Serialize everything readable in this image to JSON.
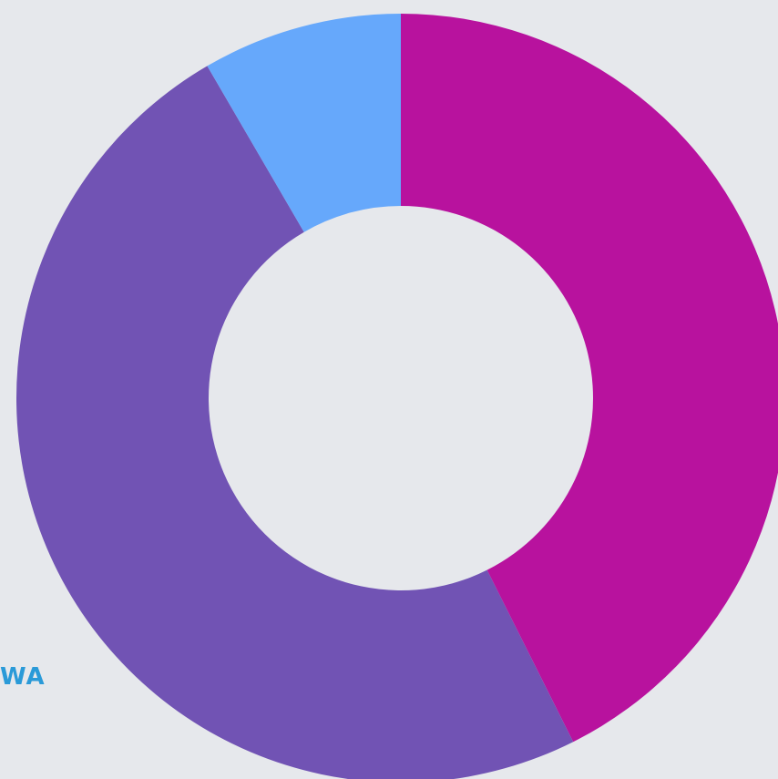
{
  "chart_data": {
    "type": "donut",
    "values": [
      42.6,
      49,
      8.4
    ],
    "colors": [
      "#b8129e",
      "#7153b4",
      "#66a8fb"
    ]
  },
  "logo": "WA"
}
